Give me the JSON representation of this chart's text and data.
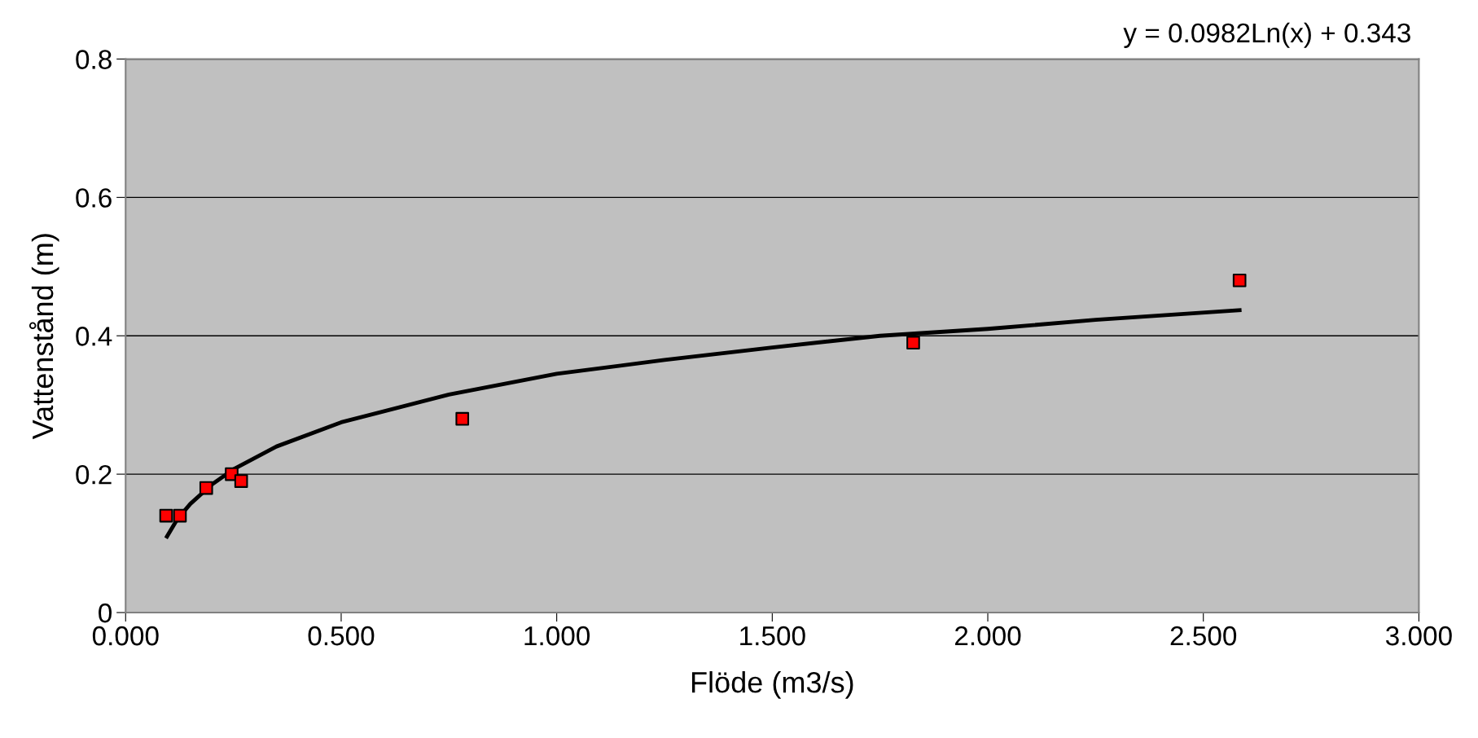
{
  "chart_data": {
    "type": "scatter",
    "xlabel": "Flöde (m3/s)",
    "ylabel": "Vattenstånd (m)",
    "annotations": [
      "y = 0.0982Ln(x) + 0.343"
    ],
    "series": [
      {
        "color": "#ff0000",
        "marker": "square",
        "x": [
          0.094,
          0.126,
          0.187,
          0.246,
          0.268,
          0.781,
          1.827,
          2.584
        ],
        "values": [
          0.14,
          0.14,
          0.18,
          0.2,
          0.19,
          0.28,
          0.39,
          0.48
        ]
      },
      {
        "type": "line",
        "color": "#000000",
        "marker": "none",
        "line_style": "solid",
        "x": [
          0.096,
          0.12,
          0.15,
          0.2,
          0.25,
          0.35,
          0.5,
          0.75,
          1.0,
          1.25,
          1.5,
          1.75,
          2.0,
          2.25,
          2.584
        ],
        "values": [
          0.11,
          0.135,
          0.157,
          0.185,
          0.207,
          0.24,
          0.275,
          0.315,
          0.345,
          0.365,
          0.383,
          0.4,
          0.41,
          0.423,
          0.437
        ]
      }
    ],
    "xlim": [
      0,
      3
    ],
    "ylim": [
      0,
      0.8
    ],
    "xticks": [
      {
        "value": 0,
        "label": "0.000"
      },
      {
        "value": 0.5,
        "label": "0.500"
      },
      {
        "value": 1,
        "label": "1.000"
      },
      {
        "value": 1.5,
        "label": "1.500"
      },
      {
        "value": 2,
        "label": "2.000"
      },
      {
        "value": 2.5,
        "label": "2.500"
      },
      {
        "value": 3,
        "label": "3.000"
      }
    ],
    "yticks": [
      0,
      0.2,
      0.4,
      0.6,
      0.8
    ],
    "grid": "y",
    "legend": false
  }
}
